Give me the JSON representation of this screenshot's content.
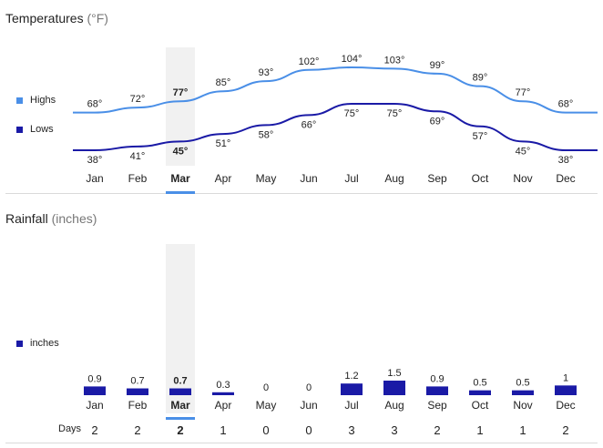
{
  "temperatures": {
    "title": "Temperatures",
    "unit": "(°F)",
    "legend": [
      {
        "label": "Highs",
        "color": "#4a8fe7"
      },
      {
        "label": "Lows",
        "color": "#1a1aa6"
      }
    ]
  },
  "rainfall": {
    "title": "Rainfall",
    "unit": "(inches)",
    "legend": [
      {
        "label": "inches",
        "color": "#1a1aa6"
      }
    ],
    "days_label": "Days"
  },
  "selected_month": "Mar",
  "chart_data": [
    {
      "type": "line",
      "title": "Temperatures (°F)",
      "categories": [
        "Jan",
        "Feb",
        "Mar",
        "Apr",
        "May",
        "Jun",
        "Jul",
        "Aug",
        "Sep",
        "Oct",
        "Nov",
        "Dec"
      ],
      "series": [
        {
          "name": "Highs",
          "color": "#4a8fe7",
          "values": [
            68,
            72,
            77,
            85,
            93,
            102,
            104,
            103,
            99,
            89,
            77,
            68
          ],
          "labels": [
            "68°",
            "72°",
            "77°",
            "85°",
            "93°",
            "102°",
            "104°",
            "103°",
            "99°",
            "89°",
            "77°",
            "68°"
          ]
        },
        {
          "name": "Lows",
          "color": "#1a1aa6",
          "values": [
            38,
            41,
            45,
            51,
            58,
            66,
            75,
            75,
            69,
            57,
            45,
            38
          ],
          "labels": [
            "38°",
            "41°",
            "45°",
            "51°",
            "58°",
            "66°",
            "75°",
            "75°",
            "69°",
            "57°",
            "45°",
            "38°"
          ]
        }
      ]
    },
    {
      "type": "bar",
      "title": "Rainfall (inches)",
      "categories": [
        "Jan",
        "Feb",
        "Mar",
        "Apr",
        "May",
        "Jun",
        "Jul",
        "Aug",
        "Sep",
        "Oct",
        "Nov",
        "Dec"
      ],
      "series": [
        {
          "name": "inches",
          "color": "#1a1aa6",
          "values": [
            0.9,
            0.7,
            0.7,
            0.3,
            0,
            0,
            1.2,
            1.5,
            0.9,
            0.5,
            0.5,
            1
          ],
          "labels": [
            "0.9",
            "0.7",
            "0.7",
            "0.3",
            "0",
            "0",
            "1.2",
            "1.5",
            "0.9",
            "0.5",
            "0.5",
            "1"
          ]
        }
      ],
      "days": [
        "2",
        "2",
        "2",
        "1",
        "0",
        "0",
        "3",
        "3",
        "2",
        "1",
        "1",
        "2"
      ]
    }
  ]
}
